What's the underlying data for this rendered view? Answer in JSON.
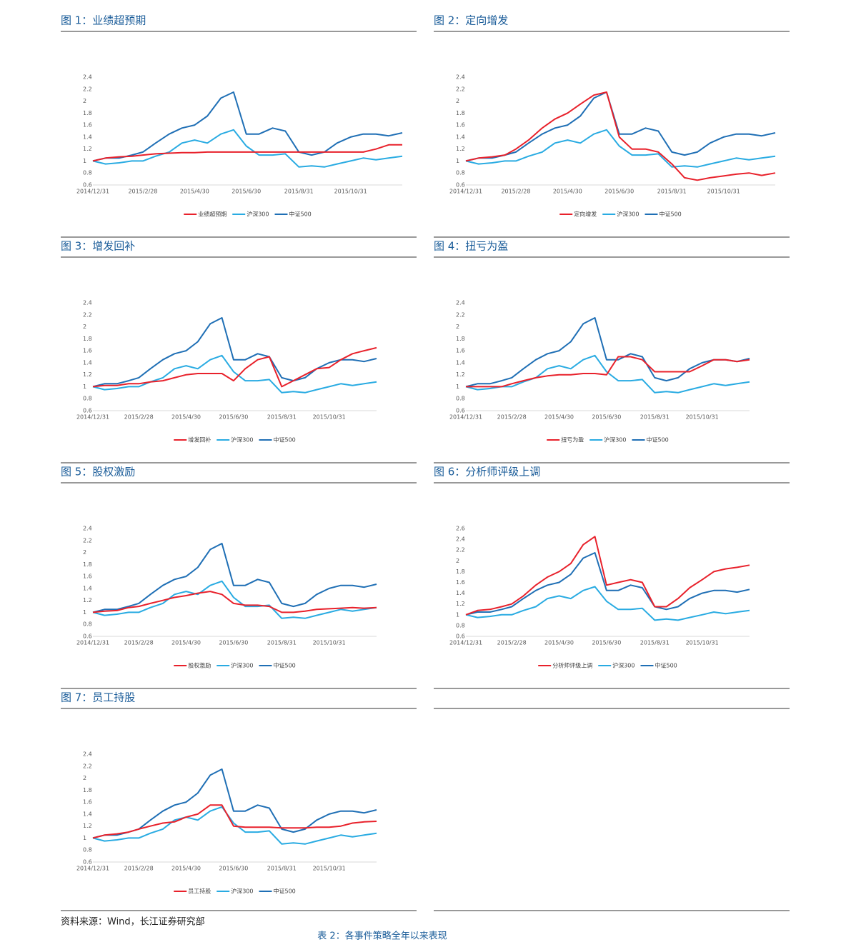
{
  "chart_data": [
    {
      "type": "line",
      "title": "图 1：业绩超预期",
      "x": [
        "2014/12/31",
        "2015/1/15",
        "2015/1/31",
        "2015/2/15",
        "2015/2/28",
        "2015/3/15",
        "2015/3/31",
        "2015/4/15",
        "2015/4/30",
        "2015/5/15",
        "2015/5/31",
        "2015/6/15",
        "2015/6/30",
        "2015/7/15",
        "2015/7/31",
        "2015/8/15",
        "2015/8/31",
        "2015/9/15",
        "2015/9/30",
        "2015/10/15",
        "2015/10/31",
        "2015/11/15",
        "2015/11/30",
        "2015/12/15",
        "2015/12/31"
      ],
      "xlim": [
        "2014/12/31",
        "2015/12/31"
      ],
      "xticks": [
        "2014/12/31",
        "2015/2/28",
        "2015/4/30",
        "2015/6/30",
        "2015/8/31",
        "2015/10/31"
      ],
      "ylim": [
        0.6,
        2.4
      ],
      "yticks": [
        0.6,
        0.8,
        1,
        1.2,
        1.4,
        1.6,
        1.8,
        2,
        2.2,
        2.4
      ],
      "series": [
        {
          "name": "业绩超预期",
          "color": "#e8212b",
          "values": [
            1,
            1.05,
            1.07,
            1.08,
            1.1,
            1.12,
            1.13,
            1.14,
            1.14,
            1.15,
            1.15,
            1.15,
            1.15,
            1.15,
            1.15,
            1.15,
            1.15,
            1.15,
            1.15,
            1.15,
            1.15,
            1.15,
            1.2,
            1.27,
            1.27
          ]
        },
        {
          "name": "沪深300",
          "color": "#29abe2",
          "values": [
            1,
            0.95,
            0.97,
            1,
            1,
            1.08,
            1.15,
            1.3,
            1.35,
            1.3,
            1.45,
            1.52,
            1.25,
            1.1,
            1.1,
            1.12,
            0.9,
            0.92,
            0.9,
            0.95,
            1,
            1.05,
            1.02,
            1.05,
            1.08
          ]
        },
        {
          "name": "中证500",
          "color": "#1f6fb5",
          "values": [
            1,
            1.05,
            1.05,
            1.1,
            1.15,
            1.3,
            1.45,
            1.55,
            1.6,
            1.75,
            2.05,
            2.15,
            1.45,
            1.45,
            1.55,
            1.5,
            1.15,
            1.1,
            1.15,
            1.3,
            1.4,
            1.45,
            1.45,
            1.42,
            1.47
          ]
        }
      ]
    },
    {
      "type": "line",
      "title": "图 2：定向增发",
      "x": [
        "2014/12/31",
        "2015/1/15",
        "2015/1/31",
        "2015/2/15",
        "2015/2/28",
        "2015/3/15",
        "2015/3/31",
        "2015/4/15",
        "2015/4/30",
        "2015/5/15",
        "2015/5/31",
        "2015/6/15",
        "2015/6/30",
        "2015/7/15",
        "2015/7/31",
        "2015/8/15",
        "2015/8/31",
        "2015/9/15",
        "2015/9/30",
        "2015/10/15",
        "2015/10/31",
        "2015/11/15",
        "2015/11/30",
        "2015/12/15",
        "2015/12/31"
      ],
      "xlim": [
        "2014/12/31",
        "2015/12/31"
      ],
      "xticks": [
        "2014/12/31",
        "2015/2/28",
        "2015/4/30",
        "2015/6/30",
        "2015/8/31",
        "2015/10/31"
      ],
      "ylim": [
        0.6,
        2.4
      ],
      "yticks": [
        0.6,
        0.8,
        1,
        1.2,
        1.4,
        1.6,
        1.8,
        2,
        2.2,
        2.4
      ],
      "series": [
        {
          "name": "定向增发",
          "color": "#e8212b",
          "values": [
            1,
            1.05,
            1.07,
            1.1,
            1.2,
            1.35,
            1.55,
            1.7,
            1.8,
            1.95,
            2.1,
            2.15,
            1.4,
            1.2,
            1.2,
            1.15,
            0.95,
            0.72,
            0.68,
            0.72,
            0.75,
            0.78,
            0.8,
            0.76,
            0.8
          ]
        },
        {
          "name": "沪深300",
          "color": "#29abe2",
          "values": [
            1,
            0.95,
            0.97,
            1,
            1,
            1.08,
            1.15,
            1.3,
            1.35,
            1.3,
            1.45,
            1.52,
            1.25,
            1.1,
            1.1,
            1.12,
            0.9,
            0.92,
            0.9,
            0.95,
            1,
            1.05,
            1.02,
            1.05,
            1.08
          ]
        },
        {
          "name": "中证500",
          "color": "#1f6fb5",
          "values": [
            1,
            1.05,
            1.05,
            1.1,
            1.15,
            1.3,
            1.45,
            1.55,
            1.6,
            1.75,
            2.05,
            2.15,
            1.45,
            1.45,
            1.55,
            1.5,
            1.15,
            1.1,
            1.15,
            1.3,
            1.4,
            1.45,
            1.45,
            1.42,
            1.47
          ]
        }
      ]
    },
    {
      "type": "line",
      "title": "图 3：增发回补",
      "x": [
        "2014/12/31",
        "2015/1/15",
        "2015/1/31",
        "2015/2/15",
        "2015/2/28",
        "2015/3/15",
        "2015/3/31",
        "2015/4/15",
        "2015/4/30",
        "2015/5/15",
        "2015/5/31",
        "2015/6/15",
        "2015/6/30",
        "2015/7/15",
        "2015/7/31",
        "2015/8/15",
        "2015/8/31",
        "2015/9/15",
        "2015/9/30",
        "2015/10/15",
        "2015/10/31",
        "2015/11/15",
        "2015/11/30",
        "2015/12/15",
        "2015/12/31"
      ],
      "xlim": [
        "2014/12/31",
        "2015/12/31"
      ],
      "xticks": [
        "2014/12/31",
        "2015/2/28",
        "2015/4/30",
        "2015/6/30",
        "2015/8/31",
        "2015/10/31"
      ],
      "ylim": [
        0.6,
        2.4
      ],
      "yticks": [
        0.6,
        0.8,
        1,
        1.2,
        1.4,
        1.6,
        1.8,
        2,
        2.2,
        2.4
      ],
      "series": [
        {
          "name": "增发回补",
          "color": "#e8212b",
          "values": [
            1,
            1.02,
            1.02,
            1.05,
            1.05,
            1.08,
            1.1,
            1.15,
            1.2,
            1.22,
            1.22,
            1.22,
            1.1,
            1.3,
            1.45,
            1.5,
            1,
            1.1,
            1.2,
            1.3,
            1.32,
            1.45,
            1.55,
            1.6,
            1.65
          ]
        },
        {
          "name": "沪深300",
          "color": "#29abe2",
          "values": [
            1,
            0.95,
            0.97,
            1,
            1,
            1.08,
            1.15,
            1.3,
            1.35,
            1.3,
            1.45,
            1.52,
            1.25,
            1.1,
            1.1,
            1.12,
            0.9,
            0.92,
            0.9,
            0.95,
            1,
            1.05,
            1.02,
            1.05,
            1.08
          ]
        },
        {
          "name": "中证500",
          "color": "#1f6fb5",
          "values": [
            1,
            1.05,
            1.05,
            1.1,
            1.15,
            1.3,
            1.45,
            1.55,
            1.6,
            1.75,
            2.05,
            2.15,
            1.45,
            1.45,
            1.55,
            1.5,
            1.15,
            1.1,
            1.15,
            1.3,
            1.4,
            1.45,
            1.45,
            1.42,
            1.47
          ]
        }
      ]
    },
    {
      "type": "line",
      "title": "图 4：扭亏为盈",
      "x": [
        "2014/12/31",
        "2015/1/15",
        "2015/1/31",
        "2015/2/15",
        "2015/2/28",
        "2015/3/15",
        "2015/3/31",
        "2015/4/15",
        "2015/4/30",
        "2015/5/15",
        "2015/5/31",
        "2015/6/15",
        "2015/6/30",
        "2015/7/15",
        "2015/7/31",
        "2015/8/15",
        "2015/8/31",
        "2015/9/15",
        "2015/9/30",
        "2015/10/15",
        "2015/10/31",
        "2015/11/15",
        "2015/11/30",
        "2015/12/15",
        "2015/12/31"
      ],
      "xlim": [
        "2014/12/31",
        "2015/12/31"
      ],
      "xticks": [
        "2014/12/31",
        "2015/2/28",
        "2015/4/30",
        "2015/6/30",
        "2015/8/31",
        "2015/10/31"
      ],
      "ylim": [
        0.6,
        2.4
      ],
      "yticks": [
        0.6,
        0.8,
        1,
        1.2,
        1.4,
        1.6,
        1.8,
        2,
        2.2,
        2.4
      ],
      "series": [
        {
          "name": "扭亏为盈",
          "color": "#e8212b",
          "values": [
            1,
            1,
            1,
            1,
            1.05,
            1.1,
            1.15,
            1.18,
            1.2,
            1.2,
            1.22,
            1.22,
            1.2,
            1.5,
            1.5,
            1.45,
            1.25,
            1.25,
            1.25,
            1.25,
            1.35,
            1.45,
            1.45,
            1.42,
            1.45
          ]
        },
        {
          "name": "沪深300",
          "color": "#29abe2",
          "values": [
            1,
            0.95,
            0.97,
            1,
            1,
            1.08,
            1.15,
            1.3,
            1.35,
            1.3,
            1.45,
            1.52,
            1.25,
            1.1,
            1.1,
            1.12,
            0.9,
            0.92,
            0.9,
            0.95,
            1,
            1.05,
            1.02,
            1.05,
            1.08
          ]
        },
        {
          "name": "中证500",
          "color": "#1f6fb5",
          "values": [
            1,
            1.05,
            1.05,
            1.1,
            1.15,
            1.3,
            1.45,
            1.55,
            1.6,
            1.75,
            2.05,
            2.15,
            1.45,
            1.45,
            1.55,
            1.5,
            1.15,
            1.1,
            1.15,
            1.3,
            1.4,
            1.45,
            1.45,
            1.42,
            1.47
          ]
        }
      ]
    },
    {
      "type": "line",
      "title": "图 5：股权激励",
      "x": [
        "2014/12/31",
        "2015/1/15",
        "2015/1/31",
        "2015/2/15",
        "2015/2/28",
        "2015/3/15",
        "2015/3/31",
        "2015/4/15",
        "2015/4/30",
        "2015/5/15",
        "2015/5/31",
        "2015/6/15",
        "2015/6/30",
        "2015/7/15",
        "2015/7/31",
        "2015/8/15",
        "2015/8/31",
        "2015/9/15",
        "2015/9/30",
        "2015/10/15",
        "2015/10/31",
        "2015/11/15",
        "2015/11/30",
        "2015/12/15",
        "2015/12/31"
      ],
      "xlim": [
        "2014/12/31",
        "2015/12/31"
      ],
      "xticks": [
        "2014/12/31",
        "2015/2/28",
        "2015/4/30",
        "2015/6/30",
        "2015/8/31",
        "2015/10/31"
      ],
      "ylim": [
        0.6,
        2.4
      ],
      "yticks": [
        0.6,
        0.8,
        1,
        1.2,
        1.4,
        1.6,
        1.8,
        2,
        2.2,
        2.4
      ],
      "series": [
        {
          "name": "股权激励",
          "color": "#e8212b",
          "values": [
            1,
            1.02,
            1.03,
            1.08,
            1.1,
            1.15,
            1.2,
            1.25,
            1.28,
            1.32,
            1.35,
            1.3,
            1.15,
            1.12,
            1.12,
            1.1,
            1,
            1,
            1.02,
            1.05,
            1.06,
            1.07,
            1.08,
            1.07,
            1.08
          ]
        },
        {
          "name": "沪深300",
          "color": "#29abe2",
          "values": [
            1,
            0.95,
            0.97,
            1,
            1,
            1.08,
            1.15,
            1.3,
            1.35,
            1.3,
            1.45,
            1.52,
            1.25,
            1.1,
            1.1,
            1.12,
            0.9,
            0.92,
            0.9,
            0.95,
            1,
            1.05,
            1.02,
            1.05,
            1.08
          ]
        },
        {
          "name": "中证500",
          "color": "#1f6fb5",
          "values": [
            1,
            1.05,
            1.05,
            1.1,
            1.15,
            1.3,
            1.45,
            1.55,
            1.6,
            1.75,
            2.05,
            2.15,
            1.45,
            1.45,
            1.55,
            1.5,
            1.15,
            1.1,
            1.15,
            1.3,
            1.4,
            1.45,
            1.45,
            1.42,
            1.47
          ]
        }
      ]
    },
    {
      "type": "line",
      "title": "图 6：分析师评级上调",
      "x": [
        "2014/12/31",
        "2015/1/15",
        "2015/1/31",
        "2015/2/15",
        "2015/2/28",
        "2015/3/15",
        "2015/3/31",
        "2015/4/15",
        "2015/4/30",
        "2015/5/15",
        "2015/5/31",
        "2015/6/15",
        "2015/6/30",
        "2015/7/15",
        "2015/7/31",
        "2015/8/15",
        "2015/8/31",
        "2015/9/15",
        "2015/9/30",
        "2015/10/15",
        "2015/10/31",
        "2015/11/15",
        "2015/11/30",
        "2015/12/15",
        "2015/12/31"
      ],
      "xlim": [
        "2014/12/31",
        "2015/12/31"
      ],
      "xticks": [
        "2014/12/31",
        "2015/2/28",
        "2015/4/30",
        "2015/6/30",
        "2015/8/31",
        "2015/10/31"
      ],
      "ylim": [
        0.6,
        2.6
      ],
      "yticks": [
        0.6,
        0.8,
        1,
        1.2,
        1.4,
        1.6,
        1.8,
        2,
        2.2,
        2.4,
        2.6
      ],
      "series": [
        {
          "name": "分析师评级上调",
          "color": "#e8212b",
          "values": [
            1,
            1.08,
            1.1,
            1.15,
            1.2,
            1.35,
            1.55,
            1.7,
            1.8,
            1.95,
            2.3,
            2.45,
            1.55,
            1.6,
            1.65,
            1.6,
            1.15,
            1.15,
            1.3,
            1.5,
            1.65,
            1.8,
            1.85,
            1.88,
            1.92
          ]
        },
        {
          "name": "沪深300",
          "color": "#29abe2",
          "values": [
            1,
            0.95,
            0.97,
            1,
            1,
            1.08,
            1.15,
            1.3,
            1.35,
            1.3,
            1.45,
            1.52,
            1.25,
            1.1,
            1.1,
            1.12,
            0.9,
            0.92,
            0.9,
            0.95,
            1,
            1.05,
            1.02,
            1.05,
            1.08
          ]
        },
        {
          "name": "中证500",
          "color": "#1f6fb5",
          "values": [
            1,
            1.05,
            1.05,
            1.1,
            1.15,
            1.3,
            1.45,
            1.55,
            1.6,
            1.75,
            2.05,
            2.15,
            1.45,
            1.45,
            1.55,
            1.5,
            1.15,
            1.1,
            1.15,
            1.3,
            1.4,
            1.45,
            1.45,
            1.42,
            1.47
          ]
        }
      ]
    },
    {
      "type": "line",
      "title": "图 7：员工持股",
      "x": [
        "2014/12/31",
        "2015/1/15",
        "2015/1/31",
        "2015/2/15",
        "2015/2/28",
        "2015/3/15",
        "2015/3/31",
        "2015/4/15",
        "2015/4/30",
        "2015/5/15",
        "2015/5/31",
        "2015/6/15",
        "2015/6/30",
        "2015/7/15",
        "2015/7/31",
        "2015/8/15",
        "2015/8/31",
        "2015/9/15",
        "2015/9/30",
        "2015/10/15",
        "2015/10/31",
        "2015/11/15",
        "2015/11/30",
        "2015/12/15",
        "2015/12/31"
      ],
      "xlim": [
        "2014/12/31",
        "2015/12/31"
      ],
      "xticks": [
        "2014/12/31",
        "2015/2/28",
        "2015/4/30",
        "2015/6/30",
        "2015/8/31",
        "2015/10/31"
      ],
      "ylim": [
        0.6,
        2.4
      ],
      "yticks": [
        0.6,
        0.8,
        1,
        1.2,
        1.4,
        1.6,
        1.8,
        2,
        2.2,
        2.4
      ],
      "series": [
        {
          "name": "员工持股",
          "color": "#e8212b",
          "values": [
            1,
            1.05,
            1.07,
            1.1,
            1.15,
            1.2,
            1.25,
            1.27,
            1.35,
            1.4,
            1.55,
            1.55,
            1.2,
            1.18,
            1.18,
            1.18,
            1.17,
            1.17,
            1.17,
            1.18,
            1.18,
            1.2,
            1.25,
            1.27,
            1.28
          ]
        },
        {
          "name": "沪深300",
          "color": "#29abe2",
          "values": [
            1,
            0.95,
            0.97,
            1,
            1,
            1.08,
            1.15,
            1.3,
            1.35,
            1.3,
            1.45,
            1.52,
            1.25,
            1.1,
            1.1,
            1.12,
            0.9,
            0.92,
            0.9,
            0.95,
            1,
            1.05,
            1.02,
            1.05,
            1.08
          ]
        },
        {
          "name": "中证500",
          "color": "#1f6fb5",
          "values": [
            1,
            1.05,
            1.05,
            1.1,
            1.15,
            1.3,
            1.45,
            1.55,
            1.6,
            1.75,
            2.05,
            2.15,
            1.45,
            1.45,
            1.55,
            1.5,
            1.15,
            1.1,
            1.15,
            1.3,
            1.4,
            1.45,
            1.45,
            1.42,
            1.47
          ]
        }
      ]
    }
  ],
  "source": "资料来源：Wind，长江证券研究部",
  "next_table_title": "表 2：各事件策略全年以来表现"
}
